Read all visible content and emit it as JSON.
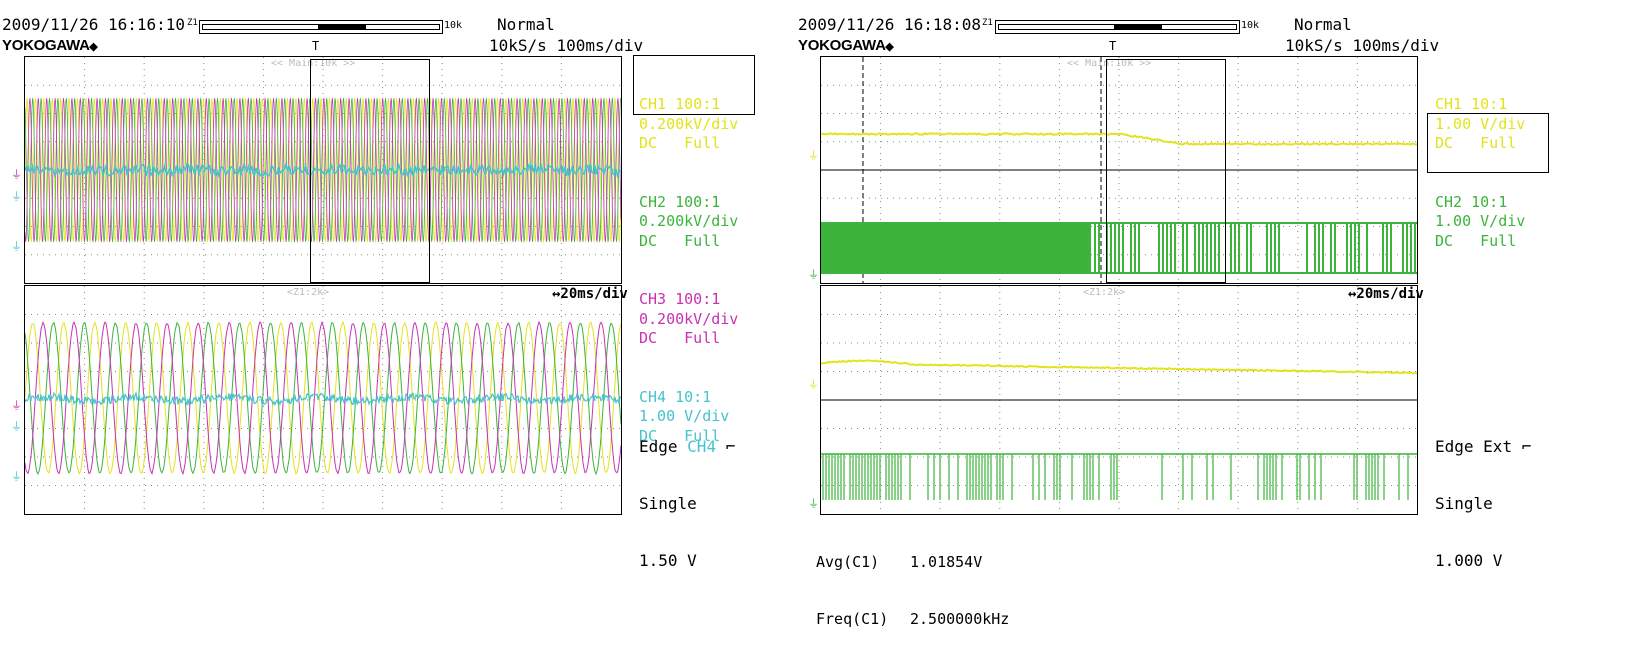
{
  "colors": {
    "yellow": "#e3e31c",
    "green": "#3cb43c",
    "magenta": "#c832b4",
    "cyan": "#46c3cd",
    "grid": "#8a8a8a"
  },
  "left": {
    "datetime": "2009/11/26 16:16:10",
    "zoom_tag": "Z1",
    "record_length": "10k",
    "trigger_mode": "Normal",
    "brand": "YOKOGAWA",
    "brand_icon": "diamond-icon",
    "sample_rate": "10kS/s",
    "time_div": "100ms/div",
    "main_tag": "<< Main:10k >>",
    "zoom_window_tag": "<Z1:2k>",
    "zoom_time_div": "↔20ms/div",
    "channels": [
      {
        "name": "CH1 100:1",
        "scale": "0.200kV/div",
        "coupling": "DC",
        "bw": "Full",
        "color": "#e3e31c"
      },
      {
        "name": "CH2 100:1",
        "scale": "0.200kV/div",
        "coupling": "DC",
        "bw": "Full",
        "color": "#3cb43c"
      },
      {
        "name": "CH3 100:1",
        "scale": "0.200kV/div",
        "coupling": "DC",
        "bw": "Full",
        "color": "#c832b4"
      },
      {
        "name": "CH4 10:1",
        "scale": "1.00 V/div",
        "coupling": "DC",
        "bw": "Full",
        "color": "#46c3cd"
      }
    ],
    "trigger": {
      "type": "Edge",
      "source": "CH4",
      "mode": "Single",
      "level": "1.50 V",
      "slope": "falling"
    }
  },
  "right": {
    "datetime": "2009/11/26 16:18:08",
    "zoom_tag": "Z1",
    "record_length": "10k",
    "trigger_mode": "Normal",
    "brand": "YOKOGAWA",
    "brand_icon": "diamond-icon",
    "sample_rate": "10kS/s",
    "time_div": "100ms/div",
    "main_tag": "<< Main:10k >>",
    "zoom_window_tag": "<Z1:2k>",
    "zoom_time_div": "↔20ms/div",
    "channels": [
      {
        "name": "CH1 10:1",
        "scale": "1.00 V/div",
        "coupling": "DC",
        "bw": "Full",
        "color": "#e3e31c"
      },
      {
        "name": "CH2 10:1",
        "scale": "1.00 V/div",
        "coupling": "DC",
        "bw": "Full",
        "color": "#3cb43c"
      }
    ],
    "trigger": {
      "type": "Edge",
      "source": "Ext",
      "mode": "Single",
      "level": "1.000 V",
      "slope": "rising"
    },
    "measurements": [
      {
        "label": "Avg(C1)",
        "value": "1.01854V"
      },
      {
        "label": "Freq(C1)",
        "value": "2.500000kHz"
      }
    ]
  }
}
